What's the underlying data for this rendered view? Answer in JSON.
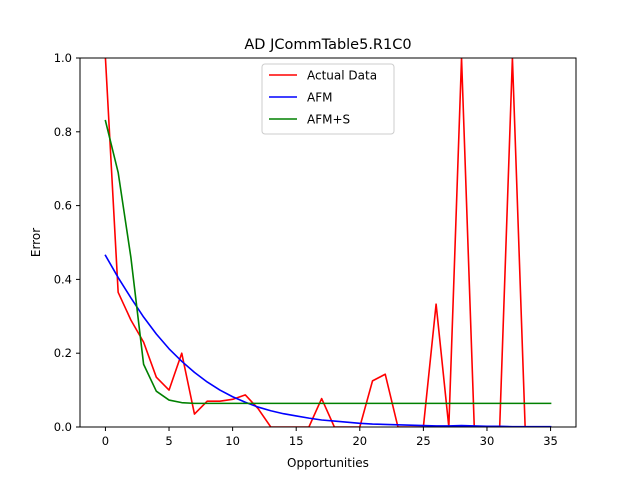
{
  "chart_data": {
    "type": "line",
    "title": "AD JCommTable5.R1C0",
    "xlabel": "Opportunities",
    "ylabel": "Error",
    "xlim": [
      -2,
      37
    ],
    "ylim": [
      0,
      1.0
    ],
    "xticks": [
      0,
      5,
      10,
      15,
      20,
      25,
      30,
      35
    ],
    "yticks": [
      0.0,
      0.2,
      0.4,
      0.6,
      0.8,
      1.0
    ],
    "xtick_labels": [
      "0",
      "5",
      "10",
      "15",
      "20",
      "25",
      "30",
      "35"
    ],
    "ytick_labels": [
      "0.0",
      "0.2",
      "0.4",
      "0.6",
      "0.8",
      "1.0"
    ],
    "grid": false,
    "legend_position": "upper center",
    "x": [
      0,
      1,
      2,
      3,
      4,
      5,
      6,
      7,
      8,
      9,
      10,
      11,
      12,
      13,
      14,
      15,
      16,
      17,
      18,
      19,
      20,
      21,
      22,
      23,
      24,
      25,
      26,
      27,
      28,
      29,
      30,
      31,
      32,
      33,
      34,
      35
    ],
    "series": [
      {
        "name": "Actual Data",
        "color": "#ff0000",
        "values": [
          1.0,
          0.365,
          0.29,
          0.23,
          0.135,
          0.1,
          0.2,
          0.035,
          0.07,
          0.07,
          0.075,
          0.087,
          0.05,
          0.0,
          0.0,
          0.0,
          0.0,
          0.077,
          0.0,
          0.0,
          0.0,
          0.125,
          0.143,
          0.0,
          0.0,
          0.0,
          0.333,
          0.0,
          1.0,
          0.0,
          0.0,
          0.0,
          1.0,
          0.0,
          0.0,
          0.0
        ]
      },
      {
        "name": "AFM",
        "color": "#0000ff",
        "values": [
          0.465,
          0.405,
          0.35,
          0.298,
          0.252,
          0.212,
          0.178,
          0.148,
          0.122,
          0.1,
          0.082,
          0.067,
          0.054,
          0.044,
          0.036,
          0.03,
          0.024,
          0.019,
          0.016,
          0.013,
          0.01,
          0.008,
          0.007,
          0.006,
          0.005,
          0.004,
          0.003,
          0.003,
          0.004,
          0.003,
          0.002,
          0.002,
          0.001,
          0.001,
          0.001,
          0.001
        ]
      },
      {
        "name": "AFM+S",
        "color": "#008000",
        "values": [
          0.83,
          0.69,
          0.46,
          0.17,
          0.097,
          0.073,
          0.066,
          0.064,
          0.064,
          0.064,
          0.064,
          0.064,
          0.064,
          0.064,
          0.064,
          0.064,
          0.064,
          0.064,
          0.064,
          0.064,
          0.064,
          0.064,
          0.064,
          0.064,
          0.064,
          0.064,
          0.064,
          0.064,
          0.064,
          0.064,
          0.064,
          0.064,
          0.064,
          0.064,
          0.064,
          0.064
        ]
      }
    ]
  }
}
